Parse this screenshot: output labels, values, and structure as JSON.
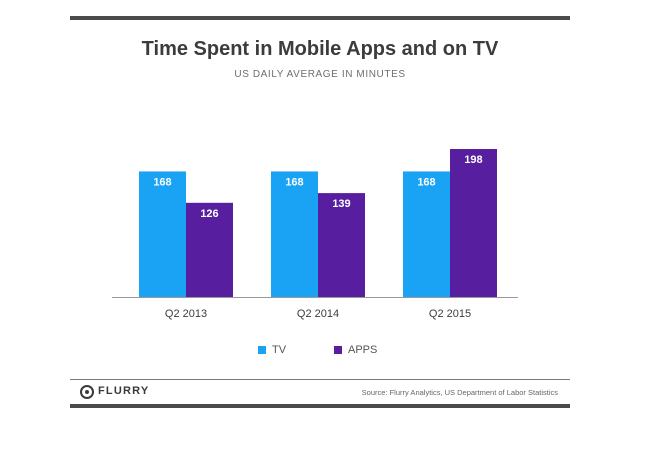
{
  "brand": {
    "logo_text": "FLURRY"
  },
  "source": "Source: Flurry Analytics, US Department of Labor Statistics",
  "colors": {
    "tv": "#1aa3f5",
    "apps": "#581ea0",
    "text": "#3c3c3c"
  },
  "chart_data": {
    "type": "bar",
    "title": "Time Spent in Mobile Apps and on TV",
    "subtitle": "US DAILY AVERAGE IN MINUTES",
    "categories": [
      "Q2 2013",
      "Q2 2014",
      "Q2 2015"
    ],
    "series": [
      {
        "name": "TV",
        "values": [
          168,
          168,
          168
        ]
      },
      {
        "name": "APPS",
        "values": [
          126,
          139,
          198
        ]
      }
    ],
    "ylim": [
      0,
      210
    ],
    "grid": false,
    "legend": "bottom",
    "data_labels": true
  }
}
